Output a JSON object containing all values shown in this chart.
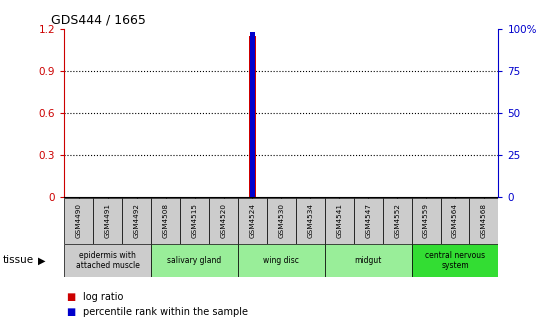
{
  "title": "GDS444 / 1665",
  "samples": [
    "GSM4490",
    "GSM4491",
    "GSM4492",
    "GSM4508",
    "GSM4515",
    "GSM4520",
    "GSM4524",
    "GSM4530",
    "GSM4534",
    "GSM4541",
    "GSM4547",
    "GSM4552",
    "GSM4559",
    "GSM4564",
    "GSM4568"
  ],
  "log_ratio": [
    0,
    0,
    0,
    0,
    0,
    0,
    1.15,
    0,
    0,
    0,
    0,
    0,
    0,
    0,
    0
  ],
  "percentile_rank": [
    0,
    0,
    0,
    0,
    0,
    0,
    98,
    0,
    0,
    0,
    0,
    0,
    0,
    0,
    0
  ],
  "ylim_left": [
    0,
    1.2
  ],
  "ylim_right": [
    0,
    100
  ],
  "yticks_left": [
    0,
    0.3,
    0.6,
    0.9,
    1.2
  ],
  "yticks_right": [
    0,
    25,
    50,
    75,
    100
  ],
  "ytick_labels_left": [
    "0",
    "0.3",
    "0.6",
    "0.9",
    "1.2"
  ],
  "ytick_labels_right": [
    "0",
    "25",
    "50",
    "75",
    "100%"
  ],
  "bar_color": "#cc0000",
  "percentile_color": "#0000cc",
  "tissue_groups": [
    {
      "label": "epidermis with\nattached muscle",
      "start": 0,
      "end": 3,
      "color": "#cccccc"
    },
    {
      "label": "salivary gland",
      "start": 3,
      "end": 6,
      "color": "#99ee99"
    },
    {
      "label": "wing disc",
      "start": 6,
      "end": 9,
      "color": "#99ee99"
    },
    {
      "label": "midgut",
      "start": 9,
      "end": 12,
      "color": "#99ee99"
    },
    {
      "label": "central nervous\nsystem",
      "start": 12,
      "end": 15,
      "color": "#33dd33"
    }
  ],
  "tissue_label": "tissue",
  "legend_items": [
    {
      "label": "log ratio",
      "color": "#cc0000"
    },
    {
      "label": "percentile rank within the sample",
      "color": "#0000cc"
    }
  ],
  "left_axis_color": "#cc0000",
  "right_axis_color": "#0000cc",
  "background_color": "#ffffff",
  "grid_color": "#000000",
  "border_color": "#000000",
  "sample_row_color": "#cccccc"
}
